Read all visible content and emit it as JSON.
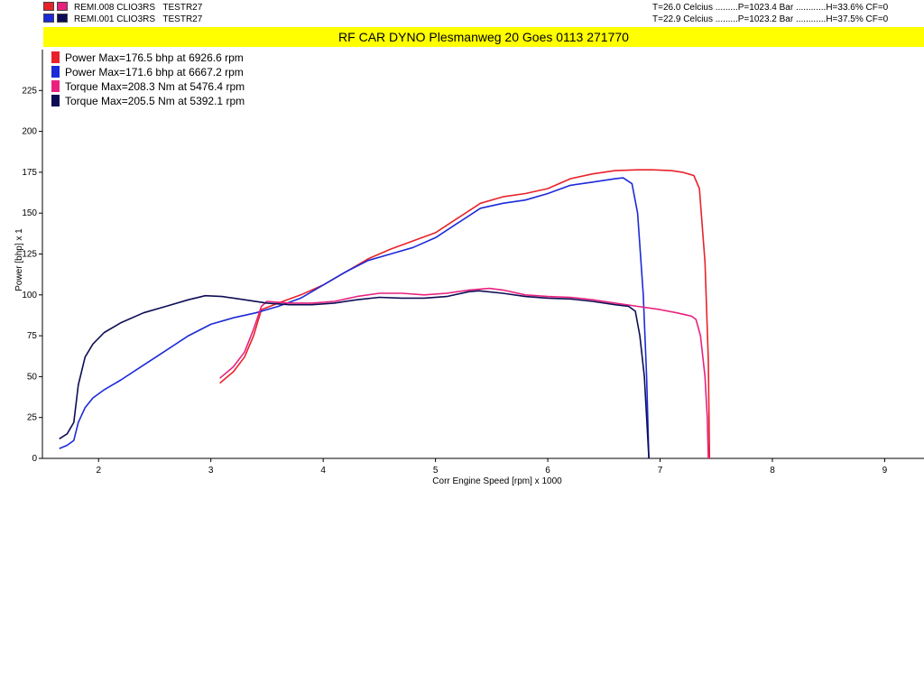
{
  "runs": [
    {
      "name": "REMI.008 CLIO3RS",
      "test": "TESTR27",
      "color_power": "#e8222a",
      "color_torque": "#e8217f",
      "conditions": "T=26.0 Celcius .........P=1023.4 Bar ............H=33.6% CF=0"
    },
    {
      "name": "REMI.001 CLIO3RS",
      "test": "TESTR27",
      "color_power": "#1c2ad8",
      "color_torque": "#0d0d55",
      "conditions": "T=22.9 Celcius .........P=1023.2 Bar ............H=37.5% CF=0"
    }
  ],
  "title": "RF CAR DYNO  Plesmanweg 20 Goes  0113 271770",
  "chart_data": {
    "type": "line",
    "xlabel": "Corr Engine Speed [rpm] x 1000",
    "ylabel": "Power [bhp] x 1",
    "xlim": [
      1.5,
      9.35
    ],
    "ylim": [
      0,
      250
    ],
    "xticks": [
      2,
      3,
      4,
      5,
      6,
      7,
      8,
      9
    ],
    "yticks": [
      0,
      25,
      50,
      75,
      100,
      125,
      150,
      175,
      200,
      225
    ],
    "grid": false,
    "legend": "top-left",
    "legend_entries": [
      "Power  Max=176.5 bhp at 6926.6 rpm",
      "Power  Max=171.6 bhp at 6667.2 rpm",
      "Torque  Max=208.3 Nm at 5476.4 rpm",
      "Torque  Max=205.5 Nm at 5392.1 rpm"
    ],
    "series": [
      {
        "color": "#e8222a",
        "width": 1.6,
        "points": [
          [
            3.08,
            46
          ],
          [
            3.2,
            53
          ],
          [
            3.3,
            62
          ],
          [
            3.38,
            75
          ],
          [
            3.45,
            91
          ],
          [
            3.6,
            95
          ],
          [
            3.8,
            100
          ],
          [
            4.0,
            106
          ],
          [
            4.2,
            114
          ],
          [
            4.4,
            122
          ],
          [
            4.6,
            128
          ],
          [
            4.8,
            133
          ],
          [
            5.0,
            138
          ],
          [
            5.2,
            147
          ],
          [
            5.4,
            156
          ],
          [
            5.6,
            160
          ],
          [
            5.8,
            162
          ],
          [
            6.0,
            165
          ],
          [
            6.2,
            171
          ],
          [
            6.4,
            174
          ],
          [
            6.6,
            176
          ],
          [
            6.8,
            176.5
          ],
          [
            6.93,
            176.5
          ],
          [
            7.1,
            176
          ],
          [
            7.2,
            175
          ],
          [
            7.3,
            173
          ],
          [
            7.35,
            165
          ],
          [
            7.4,
            120
          ],
          [
            7.43,
            60
          ],
          [
            7.44,
            0
          ]
        ]
      },
      {
        "color": "#1c2ad8",
        "width": 1.6,
        "points": [
          [
            1.65,
            6
          ],
          [
            1.72,
            8
          ],
          [
            1.78,
            11
          ],
          [
            1.82,
            22
          ],
          [
            1.88,
            31
          ],
          [
            1.95,
            37
          ],
          [
            2.05,
            42
          ],
          [
            2.2,
            48
          ],
          [
            2.4,
            57
          ],
          [
            2.6,
            66
          ],
          [
            2.8,
            75
          ],
          [
            3.0,
            82
          ],
          [
            3.2,
            86
          ],
          [
            3.4,
            89
          ],
          [
            3.6,
            93
          ],
          [
            3.8,
            98
          ],
          [
            4.0,
            106
          ],
          [
            4.2,
            114
          ],
          [
            4.4,
            121
          ],
          [
            4.6,
            125
          ],
          [
            4.8,
            129
          ],
          [
            5.0,
            135
          ],
          [
            5.2,
            144
          ],
          [
            5.4,
            153
          ],
          [
            5.6,
            156
          ],
          [
            5.8,
            158
          ],
          [
            6.0,
            162
          ],
          [
            6.2,
            167
          ],
          [
            6.4,
            169
          ],
          [
            6.6,
            171
          ],
          [
            6.67,
            171.6
          ],
          [
            6.75,
            168
          ],
          [
            6.8,
            150
          ],
          [
            6.85,
            100
          ],
          [
            6.88,
            50
          ],
          [
            6.9,
            0
          ]
        ]
      },
      {
        "color": "#e8217f",
        "width": 1.6,
        "points": [
          [
            3.08,
            49
          ],
          [
            3.2,
            56
          ],
          [
            3.3,
            65
          ],
          [
            3.38,
            79
          ],
          [
            3.45,
            93
          ],
          [
            3.5,
            96
          ],
          [
            3.7,
            95
          ],
          [
            3.9,
            95
          ],
          [
            4.1,
            96
          ],
          [
            4.3,
            99
          ],
          [
            4.5,
            101
          ],
          [
            4.7,
            101
          ],
          [
            4.9,
            100
          ],
          [
            5.1,
            101
          ],
          [
            5.3,
            103
          ],
          [
            5.48,
            104
          ],
          [
            5.6,
            103
          ],
          [
            5.8,
            100
          ],
          [
            6.0,
            99
          ],
          [
            6.2,
            98.5
          ],
          [
            6.4,
            97
          ],
          [
            6.6,
            95
          ],
          [
            6.8,
            93
          ],
          [
            7.0,
            91
          ],
          [
            7.15,
            89
          ],
          [
            7.28,
            87
          ],
          [
            7.32,
            85
          ],
          [
            7.36,
            75
          ],
          [
            7.4,
            50
          ],
          [
            7.42,
            25
          ],
          [
            7.43,
            0
          ]
        ]
      },
      {
        "color": "#0d0d55",
        "width": 1.6,
        "points": [
          [
            1.65,
            12
          ],
          [
            1.72,
            15
          ],
          [
            1.78,
            22
          ],
          [
            1.82,
            45
          ],
          [
            1.88,
            62
          ],
          [
            1.95,
            70
          ],
          [
            2.05,
            77
          ],
          [
            2.2,
            83
          ],
          [
            2.4,
            89
          ],
          [
            2.6,
            93
          ],
          [
            2.8,
            97
          ],
          [
            2.95,
            99.5
          ],
          [
            3.1,
            99
          ],
          [
            3.3,
            97
          ],
          [
            3.5,
            95
          ],
          [
            3.7,
            94
          ],
          [
            3.9,
            94
          ],
          [
            4.1,
            95
          ],
          [
            4.3,
            97
          ],
          [
            4.5,
            98.5
          ],
          [
            4.7,
            98
          ],
          [
            4.9,
            98
          ],
          [
            5.1,
            99
          ],
          [
            5.3,
            102
          ],
          [
            5.39,
            102.5
          ],
          [
            5.6,
            101
          ],
          [
            5.8,
            99
          ],
          [
            6.0,
            98
          ],
          [
            6.2,
            97.5
          ],
          [
            6.4,
            96
          ],
          [
            6.6,
            94
          ],
          [
            6.72,
            93
          ],
          [
            6.78,
            90
          ],
          [
            6.82,
            75
          ],
          [
            6.86,
            50
          ],
          [
            6.88,
            25
          ],
          [
            6.9,
            0
          ]
        ]
      }
    ]
  }
}
